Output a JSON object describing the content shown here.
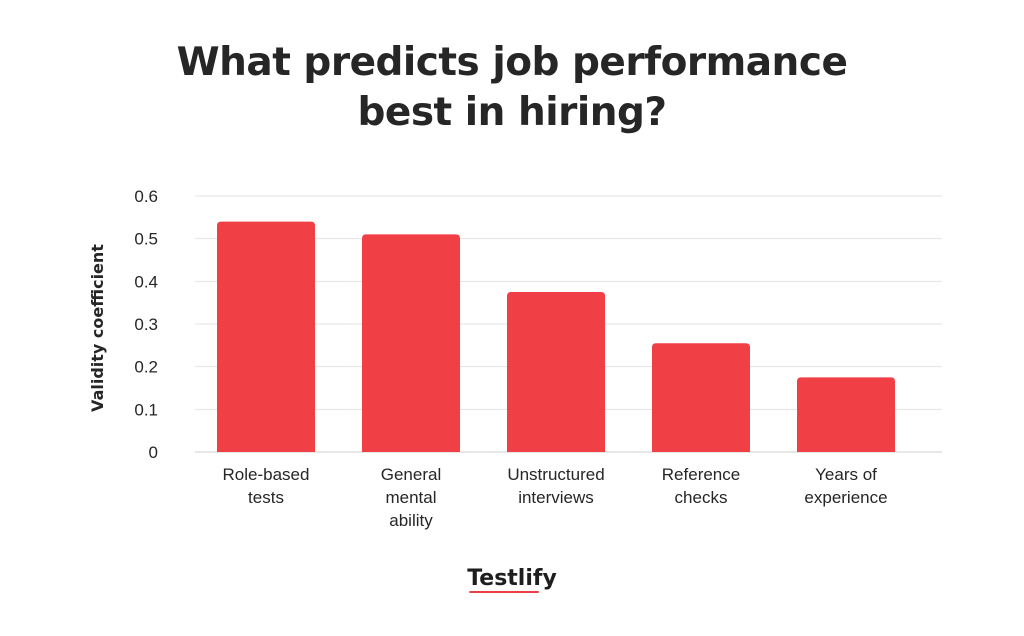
{
  "title": {
    "line1": "What predicts job performance",
    "line2": "best in hiring?"
  },
  "brand": {
    "name": "Testlify"
  },
  "colors": {
    "bar": "#f03f45",
    "grid": "#e3e3e3",
    "text": "#262626"
  },
  "chart_data": {
    "type": "bar",
    "title": "What predicts job performance best in hiring?",
    "xlabel": "",
    "ylabel": "Validity coefficient",
    "ylim": [
      0,
      0.6
    ],
    "yticks": [
      "0",
      "0.1",
      "0.2",
      "0.3",
      "0.4",
      "0.5",
      "0.6"
    ],
    "grid": true,
    "categories": [
      [
        "Role-based",
        "tests"
      ],
      [
        "General",
        "mental",
        "ability"
      ],
      [
        "Unstructured",
        "interviews"
      ],
      [
        "Reference",
        "checks"
      ],
      [
        "Years of",
        "experience"
      ]
    ],
    "values": [
      0.54,
      0.51,
      0.375,
      0.255,
      0.175
    ]
  }
}
